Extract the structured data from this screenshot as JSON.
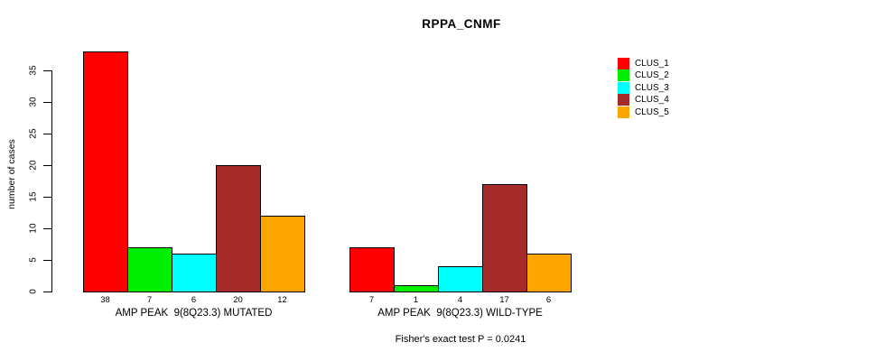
{
  "chart_data": {
    "type": "bar",
    "title": "RPPA_CNMF",
    "ylabel": "number of cases",
    "xlabel": "",
    "ylim": [
      0,
      38
    ],
    "yticks": [
      0,
      5,
      10,
      15,
      20,
      25,
      30,
      35
    ],
    "grid": false,
    "legend_position": "top-right",
    "categories": [
      "AMP PEAK  9(8Q23.3) MUTATED",
      "AMP PEAK  9(8Q23.3) WILD-TYPE"
    ],
    "series": [
      {
        "name": "CLUS_1",
        "color": "#FF0000",
        "values": [
          38,
          7
        ]
      },
      {
        "name": "CLUS_2",
        "color": "#00EE00",
        "values": [
          7,
          1
        ]
      },
      {
        "name": "CLUS_3",
        "color": "#00FFFF",
        "values": [
          6,
          4
        ]
      },
      {
        "name": "CLUS_4",
        "color": "#A52A2A",
        "values": [
          20,
          17
        ]
      },
      {
        "name": "CLUS_5",
        "color": "#FFA500",
        "values": [
          12,
          6
        ]
      }
    ],
    "bar_value_labels": true,
    "annotation": "Fisher's exact test P = 0.0241",
    "axis_color": "#000000",
    "text_color": "#000000"
  }
}
